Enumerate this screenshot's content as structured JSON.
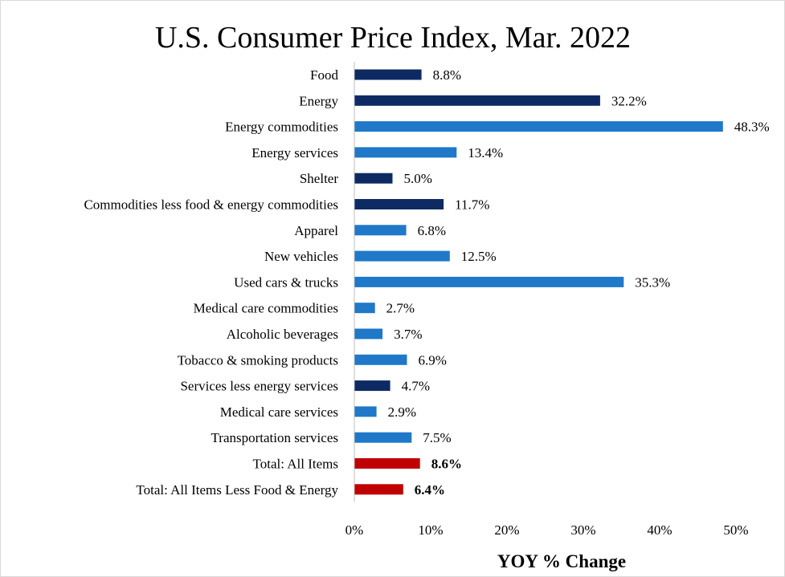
{
  "chart_data": {
    "type": "bar",
    "orientation": "horizontal",
    "title": "U.S. Consumer Price Index, Mar. 2022",
    "xlabel": "YOY % Change",
    "ylabel": "",
    "xlim": [
      0,
      50
    ],
    "xticks": [
      0,
      10,
      20,
      30,
      40,
      50
    ],
    "xtick_labels": [
      "0%",
      "10%",
      "20%",
      "30%",
      "40%",
      "50%"
    ],
    "grid": false,
    "legend": "none",
    "colors": {
      "dark": "#0d2a63",
      "light": "#1f78c8",
      "total": "#c00000"
    },
    "bars": [
      {
        "category": "Food",
        "value": 8.8,
        "label": "8.8%",
        "color": "dark",
        "bold": false
      },
      {
        "category": "Energy",
        "value": 32.2,
        "label": "32.2%",
        "color": "dark",
        "bold": false
      },
      {
        "category": "Energy commodities",
        "value": 48.3,
        "label": "48.3%",
        "color": "light",
        "bold": false
      },
      {
        "category": "Energy services",
        "value": 13.4,
        "label": "13.4%",
        "color": "light",
        "bold": false
      },
      {
        "category": "Shelter",
        "value": 5.0,
        "label": "5.0%",
        "color": "dark",
        "bold": false
      },
      {
        "category": "Commodities less food & energy commodities",
        "value": 11.7,
        "label": "11.7%",
        "color": "dark",
        "bold": false
      },
      {
        "category": "Apparel",
        "value": 6.8,
        "label": "6.8%",
        "color": "light",
        "bold": false
      },
      {
        "category": "New vehicles",
        "value": 12.5,
        "label": "12.5%",
        "color": "light",
        "bold": false
      },
      {
        "category": "Used cars & trucks",
        "value": 35.3,
        "label": "35.3%",
        "color": "light",
        "bold": false
      },
      {
        "category": "Medical care commodities",
        "value": 2.7,
        "label": "2.7%",
        "color": "light",
        "bold": false
      },
      {
        "category": "Alcoholic beverages",
        "value": 3.7,
        "label": "3.7%",
        "color": "light",
        "bold": false
      },
      {
        "category": "Tobacco & smoking products",
        "value": 6.9,
        "label": "6.9%",
        "color": "light",
        "bold": false
      },
      {
        "category": "Services less energy services",
        "value": 4.7,
        "label": "4.7%",
        "color": "dark",
        "bold": false
      },
      {
        "category": "Medical care services",
        "value": 2.9,
        "label": "2.9%",
        "color": "light",
        "bold": false
      },
      {
        "category": "Transportation services",
        "value": 7.5,
        "label": "7.5%",
        "color": "light",
        "bold": false
      },
      {
        "category": "Total: All Items",
        "value": 8.6,
        "label": "8.6%",
        "color": "total",
        "bold": true
      },
      {
        "category": "Total: All Items Less Food & Energy",
        "value": 6.4,
        "label": "6.4%",
        "color": "total",
        "bold": true
      }
    ]
  }
}
